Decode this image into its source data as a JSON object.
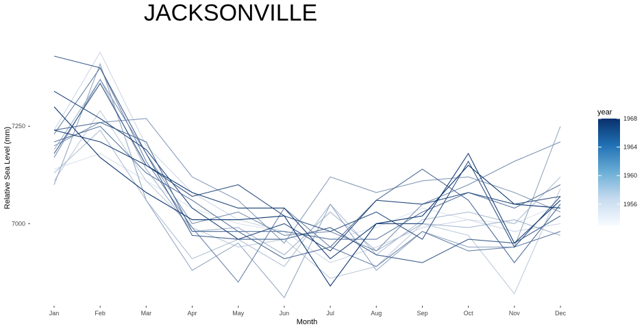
{
  "chart_data": {
    "type": "line",
    "title": "JACKSONVILLE",
    "xlabel": "Month",
    "ylabel": "Relative Sea Level (mm)",
    "categories": [
      "Jan",
      "Feb",
      "Mar",
      "Apr",
      "May",
      "Jun",
      "Jul",
      "Aug",
      "Sep",
      "Oct",
      "Nov",
      "Dec"
    ],
    "ylim": [
      6800,
      7495
    ],
    "yticks": [
      7000,
      7250
    ],
    "grid": false,
    "legend": {
      "title": "year",
      "position": "right",
      "type": "colorbar",
      "range": [
        1953,
        1968
      ],
      "ticks": [
        1956,
        1960,
        1964,
        1968
      ],
      "colors": [
        "#f7fbff",
        "#08306b"
      ]
    },
    "series": [
      {
        "year": 1953,
        "values": [
          7140,
          7180,
          7110,
          7040,
          7000,
          6980,
          6960,
          6990,
          7040,
          7010,
          7000,
          7050
        ]
      },
      {
        "year": 1954,
        "values": [
          7240,
          7440,
          7200,
          7080,
          7010,
          6980,
          6900,
          6940,
          6990,
          7010,
          6980,
          7000
        ]
      },
      {
        "year": 1955,
        "values": [
          7110,
          7290,
          7110,
          6990,
          6940,
          6960,
          6860,
          6890,
          7000,
          6970,
          6820,
          7090
        ]
      },
      {
        "year": 1956,
        "values": [
          7130,
          7240,
          7060,
          6910,
          6960,
          6890,
          7050,
          6920,
          7010,
          7030,
          7000,
          7120
        ]
      },
      {
        "year": 1957,
        "values": [
          7190,
          7370,
          7140,
          6980,
          6990,
          6920,
          7030,
          6930,
          7000,
          6990,
          7010,
          6970
        ]
      },
      {
        "year": 1958,
        "values": [
          7100,
          7410,
          7060,
          6880,
          6950,
          6810,
          7050,
          6880,
          6980,
          6940,
          6940,
          7250
        ]
      },
      {
        "year": 1959,
        "values": [
          7200,
          7260,
          7270,
          7120,
          7060,
          6950,
          7120,
          7080,
          7110,
          7120,
          7080,
          7030
        ]
      },
      {
        "year": 1960,
        "values": [
          7170,
          7370,
          7180,
          7000,
          7030,
          6970,
          6980,
          6930,
          7050,
          7100,
          7160,
          7210
        ]
      },
      {
        "year": 1961,
        "values": [
          7230,
          7400,
          7160,
          6990,
          6850,
          7040,
          6940,
          6890,
          6980,
          6930,
          6940,
          6980
        ]
      },
      {
        "year": 1962,
        "values": [
          7210,
          7250,
          7130,
          7060,
          6980,
          6980,
          6960,
          6960,
          7030,
          7080,
          7040,
          7100
        ]
      },
      {
        "year": 1963,
        "values": [
          7240,
          7260,
          7210,
          6980,
          6980,
          6910,
          6940,
          7060,
          7140,
          7060,
          6900,
          7050
        ]
      },
      {
        "year": 1964,
        "values": [
          7430,
          7400,
          7180,
          6970,
          6960,
          6960,
          6990,
          6920,
          6900,
          6960,
          6950,
          7020
        ]
      },
      {
        "year": 1965,
        "values": [
          7180,
          7360,
          7150,
          7070,
          7100,
          7020,
          6980,
          7030,
          6960,
          7160,
          6940,
          7070
        ]
      },
      {
        "year": 1966,
        "values": [
          7340,
          7270,
          7190,
          7040,
          6960,
          7000,
          6930,
          7060,
          7050,
          7080,
          7050,
          7070
        ]
      },
      {
        "year": 1967,
        "values": [
          7240,
          7210,
          7150,
          7080,
          7040,
          7040,
          6910,
          7000,
          7000,
          7180,
          6950,
          7060
        ]
      },
      {
        "year": 1968,
        "values": [
          7300,
          7170,
          7080,
          7010,
          7010,
          7020,
          6840,
          7000,
          7020,
          7150,
          7050,
          7040
        ]
      }
    ]
  }
}
